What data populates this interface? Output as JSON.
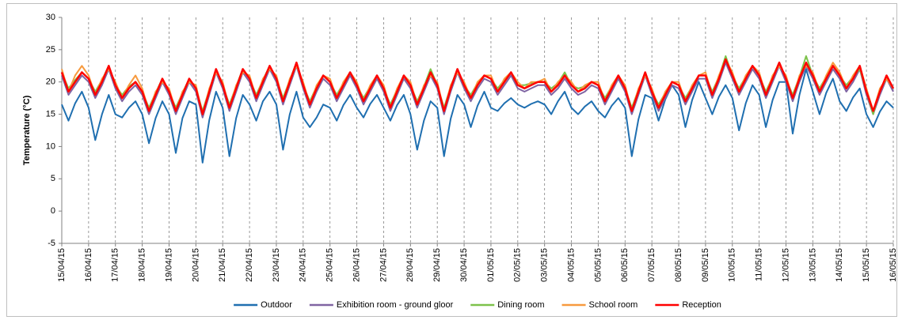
{
  "chart_data": {
    "type": "line",
    "y_label": "Temperature (°C)",
    "categories": [
      "15/04/15",
      null,
      null,
      null,
      "16/04/15",
      null,
      null,
      null,
      "17/04/15",
      null,
      null,
      null,
      "18/04/15",
      null,
      null,
      null,
      "19/04/15",
      null,
      null,
      null,
      "20/04/15",
      null,
      null,
      null,
      "21/04/15",
      null,
      null,
      null,
      "22/04/15",
      null,
      null,
      null,
      "23/04/15",
      null,
      null,
      null,
      "24/04/15",
      null,
      null,
      null,
      "25/04/15",
      null,
      null,
      null,
      "26/04/15",
      null,
      null,
      null,
      "27/04/15",
      null,
      null,
      null,
      "28/04/15",
      null,
      null,
      null,
      "29/04/15",
      null,
      null,
      null,
      "30/04/15",
      null,
      null,
      null,
      "01/05/15",
      null,
      null,
      null,
      "02/05/15",
      null,
      null,
      null,
      "03/05/15",
      null,
      null,
      null,
      "04/05/15",
      null,
      null,
      null,
      "05/05/15",
      null,
      null,
      null,
      "06/05/15",
      null,
      null,
      null,
      "07/05/15",
      null,
      null,
      null,
      "08/05/15",
      null,
      null,
      null,
      "09/05/15",
      null,
      null,
      null,
      "10/05/15",
      null,
      null,
      null,
      "11/05/15",
      null,
      null,
      null,
      "12/05/15",
      null,
      null,
      null,
      "13/05/15",
      null,
      null,
      null,
      "14/05/15",
      null,
      null,
      null,
      "15/05/15",
      null,
      null,
      null,
      "16/05/15"
    ],
    "ylim": [
      -5,
      30
    ],
    "yticks": [
      -5,
      0,
      5,
      10,
      15,
      20,
      25,
      30
    ],
    "grid": "vertical-dashed",
    "legend": "bottom",
    "series": [
      {
        "name": "Outdoor",
        "color": "#1f6fb0",
        "values": [
          16.5,
          14,
          16.7,
          18.5,
          16,
          11,
          15,
          18,
          15,
          14.5,
          16,
          17,
          15,
          10.5,
          14.4,
          17,
          15,
          9,
          14.4,
          17,
          16.5,
          7.5,
          14.1,
          18.5,
          16,
          8.5,
          14.4,
          18,
          16.5,
          14,
          17,
          18.5,
          16.5,
          9.5,
          15,
          18.5,
          14.5,
          13,
          14.5,
          16.5,
          16,
          14,
          16.4,
          18,
          16,
          14.5,
          16.6,
          18,
          16,
          14,
          16.4,
          18,
          15,
          9.5,
          14,
          17,
          16,
          8.5,
          14.3,
          18,
          16.5,
          13,
          16.3,
          18.5,
          16,
          15.5,
          16.7,
          17.5,
          16.5,
          16,
          16.6,
          17,
          16.5,
          15,
          17,
          18.5,
          16,
          15,
          16.2,
          17,
          15.5,
          14.5,
          16.3,
          17.5,
          16,
          8.5,
          14.2,
          18,
          17.5,
          14,
          17.3,
          19.5,
          18,
          13,
          17.2,
          20,
          17.5,
          15,
          17.7,
          19.5,
          17.5,
          12.5,
          16.7,
          19.5,
          18,
          13,
          17.2,
          20,
          20,
          12,
          18,
          22,
          18.5,
          15,
          18.3,
          20.5,
          17,
          15.5,
          17.6,
          19,
          15,
          13,
          15.4,
          17,
          16
        ]
      },
      {
        "name": "Exhibition room - ground gloor",
        "color": "#8064a2",
        "values": [
          21,
          18,
          19.5,
          21,
          20,
          17.5,
          19.5,
          22,
          19,
          17,
          18.5,
          19.5,
          18,
          15,
          17.5,
          20,
          18,
          15,
          17.5,
          20,
          18.5,
          14.5,
          18,
          21.5,
          19,
          15.5,
          18.5,
          21.5,
          20,
          17,
          19.5,
          22,
          20,
          16.5,
          19.5,
          22.5,
          19,
          16,
          18.5,
          20.5,
          19.5,
          17,
          19,
          21,
          19,
          16.5,
          18.5,
          20.5,
          18.5,
          15.5,
          18,
          20.5,
          19,
          16,
          18.5,
          21,
          19,
          15,
          18.5,
          21.5,
          19,
          17,
          19,
          20.5,
          20,
          18,
          19.5,
          21,
          19,
          18.5,
          19,
          19.5,
          19.5,
          18,
          19,
          20.5,
          19,
          18,
          18.5,
          19.5,
          19,
          16.5,
          18.5,
          20.5,
          18.5,
          15,
          18,
          21,
          18,
          15.5,
          17.5,
          19.5,
          19,
          16.5,
          18.5,
          20.5,
          20.5,
          17.5,
          20,
          23,
          20.5,
          18,
          20,
          22,
          20.5,
          17.5,
          20,
          22.5,
          20,
          17,
          20,
          22.5,
          20.5,
          18,
          20,
          22,
          20.5,
          18.5,
          20,
          22,
          18,
          15,
          18,
          20.5,
          18.5
        ]
      },
      {
        "name": "Dining room",
        "color": "#7dc24b",
        "values": [
          21.5,
          19,
          20.3,
          21.5,
          20.5,
          18.5,
          20.3,
          22.5,
          19.5,
          18,
          19.3,
          20,
          18.5,
          16,
          18.3,
          20.5,
          18.5,
          16,
          18.3,
          20.5,
          19,
          15.5,
          18.8,
          22,
          19.5,
          16.5,
          19.3,
          22,
          20.5,
          18,
          20.3,
          22.5,
          20.5,
          17.5,
          20.3,
          23,
          19.5,
          17,
          19.3,
          21,
          20,
          18,
          19.8,
          21.5,
          19.5,
          17.5,
          19.3,
          21,
          19,
          16.5,
          18.8,
          21,
          19.5,
          17,
          19.3,
          22,
          19.5,
          16,
          19.3,
          22,
          19.5,
          18,
          19.8,
          21,
          20.5,
          19,
          20.3,
          21.5,
          19.5,
          19.5,
          19.8,
          20,
          20,
          19,
          19.8,
          21.5,
          19.5,
          19,
          19.3,
          20,
          19.5,
          17.5,
          19.3,
          21,
          19,
          16,
          18.8,
          21.5,
          18.5,
          16.5,
          18.3,
          20,
          19.5,
          17.5,
          19.3,
          21,
          21,
          18.5,
          20.8,
          24,
          21,
          19,
          20.8,
          22.5,
          21,
          18.5,
          20.8,
          23,
          20.5,
          18,
          20.8,
          24,
          21,
          19,
          20.8,
          22.5,
          21,
          19.5,
          20.8,
          22,
          18.5,
          15,
          18.8,
          20.5,
          19
        ]
      },
      {
        "name": "School room",
        "color": "#f79a3e",
        "values": [
          22,
          18.5,
          21,
          22.5,
          21,
          18,
          20.5,
          22,
          20,
          17.5,
          19.5,
          21,
          19,
          15.5,
          18.5,
          20,
          19,
          15.5,
          18.5,
          20,
          19.5,
          15,
          19,
          21.5,
          20,
          16,
          19.5,
          21.5,
          21,
          17.5,
          20.5,
          22,
          21,
          17,
          20.5,
          22.5,
          20,
          16.5,
          19.5,
          21,
          20.5,
          17.5,
          20,
          21.5,
          20,
          17,
          19.5,
          21,
          19.5,
          16,
          19,
          21,
          20,
          16.5,
          19.5,
          21,
          20,
          15.5,
          19.5,
          21.5,
          20,
          17.5,
          20,
          21,
          21,
          18.5,
          20.5,
          21.5,
          20,
          19,
          20,
          20,
          20.5,
          18.5,
          20,
          21,
          20,
          18.5,
          19.5,
          20,
          20,
          17,
          19.5,
          21,
          19.5,
          15.5,
          19,
          21,
          19,
          16,
          18.5,
          20,
          20,
          17,
          19.5,
          21,
          21.5,
          18,
          21,
          23.5,
          21.5,
          18.5,
          21,
          22.5,
          21.5,
          18,
          21,
          22.5,
          21,
          17.5,
          21,
          22.5,
          21.5,
          18.5,
          21,
          23,
          21.5,
          19,
          21,
          22.5,
          19,
          15.5,
          19,
          20.5,
          19
        ]
      },
      {
        "name": "Reception",
        "color": "#ff0000",
        "values": [
          21.5,
          18.5,
          20,
          21.5,
          20.5,
          18,
          20,
          22.5,
          19.5,
          17.5,
          19,
          20,
          18.5,
          15.5,
          18,
          20.5,
          18.5,
          15.5,
          18,
          20.5,
          19,
          15,
          18.5,
          22,
          19.5,
          16,
          19,
          22,
          20.5,
          17.5,
          20,
          22.5,
          20.5,
          17,
          20,
          23,
          19.5,
          16.5,
          19,
          21,
          20,
          17.5,
          19.5,
          21.5,
          19.5,
          17,
          19,
          21,
          19,
          16,
          18.5,
          21,
          19.5,
          16.5,
          19,
          21.5,
          19.5,
          15.5,
          19,
          22,
          19.5,
          17.5,
          19.5,
          21,
          20.5,
          18.5,
          20,
          21.5,
          19.5,
          19,
          19.5,
          20,
          20,
          18.5,
          19.5,
          21,
          19.5,
          18.5,
          19,
          20,
          19.5,
          17,
          19,
          21,
          19,
          15.5,
          18.5,
          21.5,
          18.5,
          16,
          18,
          20,
          19.5,
          17,
          19,
          21,
          21,
          18,
          20.5,
          23.5,
          21,
          18.5,
          20.5,
          22.5,
          21,
          18,
          20.5,
          23,
          20.5,
          17.5,
          20.5,
          23,
          21,
          18.5,
          20.5,
          22.5,
          21,
          19,
          20.5,
          22.5,
          18.5,
          15.5,
          18.5,
          21,
          19
        ]
      }
    ]
  }
}
